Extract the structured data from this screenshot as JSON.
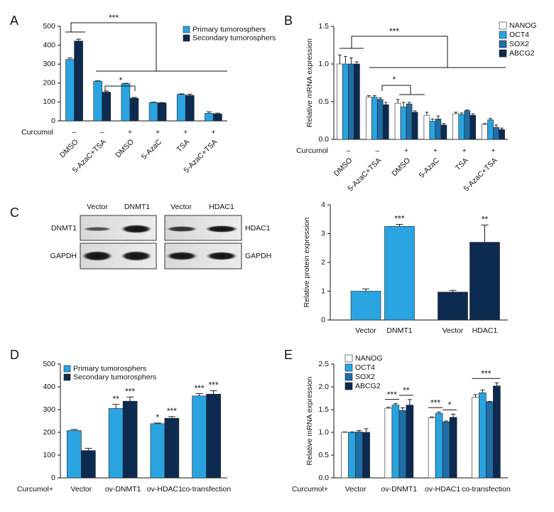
{
  "blot": {
    "columns": [
      "Vector",
      "DNMT1",
      "Vector",
      "HDAC1"
    ],
    "left_rows": [
      "DNMT1",
      "GAPDH"
    ],
    "right_rows": [
      "HDAC1",
      "GAPDH"
    ],
    "panel_label": "C"
  },
  "chart_data": [
    {
      "type": "bar",
      "panel_label": "A",
      "row_label": "Curcumol",
      "row_values": [
        "–",
        "–",
        "+",
        "+",
        "+",
        "+"
      ],
      "categories": [
        "DMSO",
        "5-AzaC+TSA",
        "DMSO",
        "5-AzaC",
        "TSA",
        "5-AzaC+TSA"
      ],
      "series": [
        {
          "name": "Primary tumorosphers",
          "color": "#29a4e0",
          "values": [
            325,
            210,
            197,
            97,
            140,
            40
          ],
          "errors": [
            8,
            2,
            2,
            2,
            3,
            8
          ]
        },
        {
          "name": "Secondary tumorosphers",
          "color": "#0d2a50",
          "values": [
            422,
            152,
            120,
            95,
            135,
            37
          ],
          "errors": [
            10,
            6,
            4,
            2,
            6,
            4
          ]
        }
      ],
      "ylim": [
        0,
        500
      ],
      "yticks": [
        0,
        100,
        200,
        300,
        400,
        500
      ],
      "legend": "top-right",
      "annotations": [
        "***",
        "*"
      ]
    },
    {
      "type": "bar",
      "panel_label": "B",
      "ylabel": "Relative mRNA expression",
      "row_label": "Curcumol",
      "row_values": [
        "–",
        "–",
        "+",
        "+",
        "+",
        "+"
      ],
      "categories": [
        "DMSO",
        "5-AzaC+TSA",
        "DMSO",
        "5-AzaC",
        "TSA",
        "5-AzaC+TSA"
      ],
      "series": [
        {
          "name": "NANOG",
          "color": "#ffffff",
          "values": [
            1.0,
            0.56,
            0.48,
            0.32,
            0.34,
            0.2
          ],
          "errors": [
            0.12,
            0.02,
            0.05,
            0.04,
            0.02,
            0.01
          ]
        },
        {
          "name": "OCT4",
          "color": "#29a4e0",
          "values": [
            1.0,
            0.56,
            0.43,
            0.24,
            0.33,
            0.26
          ],
          "errors": [
            0.1,
            0.02,
            0.06,
            0.03,
            0.02,
            0.02
          ]
        },
        {
          "name": "SOX2",
          "color": "#1f6ea6",
          "values": [
            1.0,
            0.53,
            0.47,
            0.27,
            0.38,
            0.16
          ],
          "errors": [
            0.08,
            0.02,
            0.02,
            0.04,
            0.01,
            0.03
          ]
        },
        {
          "name": "ABCG2",
          "color": "#0d2a50",
          "values": [
            1.0,
            0.46,
            0.36,
            0.19,
            0.32,
            0.13
          ],
          "errors": [
            0.03,
            0.03,
            0.02,
            0.02,
            0.02,
            0.02
          ]
        }
      ],
      "ylim": [
        0,
        1.5
      ],
      "yticks": [
        {
          "value": 0,
          "label": "0.0"
        },
        0.5,
        {
          "value": 1,
          "label": "1.0"
        },
        1.5
      ],
      "legend": "top-right",
      "annotations": [
        "***",
        "*"
      ]
    },
    {
      "type": "bar",
      "ylabel": "Relative protein expression",
      "categories": [
        "Vector",
        "DNMT1",
        "Vector",
        "HDAC1"
      ],
      "values": [
        1.0,
        3.25,
        0.97,
        2.7
      ],
      "errors": [
        0.08,
        0.07,
        0.06,
        0.6
      ],
      "colors": [
        "#29a4e0",
        "#29a4e0",
        "#0d2a50",
        "#0d2a50"
      ],
      "ylim": [
        0,
        4
      ],
      "yticks": [
        0,
        1,
        2,
        3,
        4
      ],
      "annotations": [
        "***",
        "**"
      ]
    },
    {
      "type": "bar",
      "panel_label": "D",
      "row_label": "Curcumol+",
      "categories": [
        "Vector",
        "ov-DNMT1",
        "ov-HDAC1",
        "co-transfection"
      ],
      "series": [
        {
          "name": "Primary tumorosphers",
          "color": "#29a4e0",
          "values": [
            208,
            305,
            238,
            360
          ],
          "errors": [
            5,
            18,
            3,
            10
          ]
        },
        {
          "name": "Secondary tumorosphers",
          "color": "#0d2a50",
          "values": [
            120,
            337,
            262,
            368
          ],
          "errors": [
            10,
            18,
            7,
            15
          ]
        }
      ],
      "ylim": [
        0,
        500
      ],
      "yticks": [
        0,
        100,
        200,
        300,
        400,
        500
      ],
      "legend": "top-left",
      "annotations": [
        "**",
        "***",
        "*",
        "***",
        "***",
        "***"
      ]
    },
    {
      "type": "bar",
      "panel_label": "E",
      "ylabel": "Relative mRNA expression",
      "row_label": "Curcumol+",
      "categories": [
        "Vector",
        "ov-DNMT1",
        "ov-HDAC1",
        "co-transfection"
      ],
      "series": [
        {
          "name": "NANOG",
          "color": "#ffffff",
          "values": [
            1.0,
            1.53,
            1.32,
            1.77
          ],
          "errors": [
            0.01,
            0.02,
            0.02,
            0.06
          ]
        },
        {
          "name": "OCT4",
          "color": "#29a4e0",
          "values": [
            1.0,
            1.6,
            1.42,
            1.87
          ],
          "errors": [
            0.01,
            0.03,
            0.03,
            0.06
          ]
        },
        {
          "name": "SOX2",
          "color": "#1f6ea6",
          "values": [
            1.01,
            1.48,
            1.23,
            1.67
          ],
          "errors": [
            0.03,
            0.06,
            0.02,
            0.01
          ]
        },
        {
          "name": "ABCG2",
          "color": "#0d2a50",
          "values": [
            1.0,
            1.6,
            1.33,
            2.02
          ],
          "errors": [
            0.08,
            0.12,
            0.07,
            0.07
          ]
        }
      ],
      "ylim": [
        0,
        2.5
      ],
      "yticks": [
        {
          "value": 0,
          "label": "0.0"
        },
        0.5,
        {
          "value": 1,
          "label": "1.0"
        },
        1.5,
        {
          "value": 2,
          "label": "2.0"
        },
        2.5
      ],
      "legend": "top-left",
      "annotations": [
        "***",
        "**",
        "***",
        "*",
        "***"
      ]
    }
  ]
}
